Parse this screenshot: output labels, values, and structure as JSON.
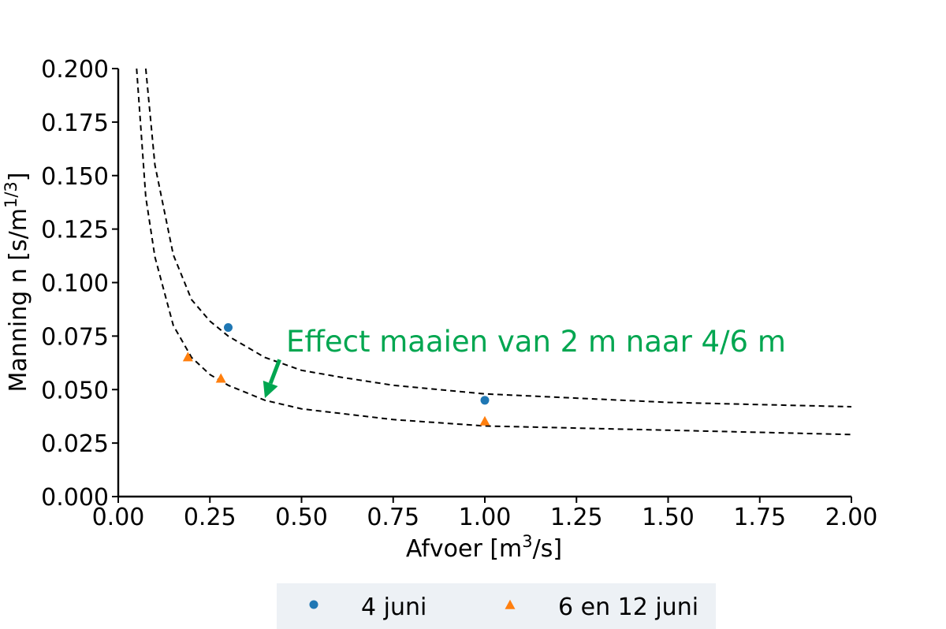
{
  "chart_data": {
    "type": "scatter",
    "title": "",
    "xlabel": {
      "base": "Afvoer [m",
      "sup": "3",
      "tail": "/s]"
    },
    "ylabel": {
      "base": "Manning n [s/m",
      "sup": "1/3",
      "tail": "]"
    },
    "xlim": [
      0.0,
      2.0
    ],
    "ylim": [
      0.0,
      0.2
    ],
    "x_ticks": [
      "0.00",
      "0.25",
      "0.50",
      "0.75",
      "1.00",
      "1.25",
      "1.50",
      "1.75",
      "2.00"
    ],
    "y_ticks": [
      "0.000",
      "0.025",
      "0.050",
      "0.075",
      "0.100",
      "0.125",
      "0.150",
      "0.175",
      "0.200"
    ],
    "grid": false,
    "legend_position": "bottom-center",
    "series": [
      {
        "name": "4 juni",
        "marker": "circle",
        "color": "#1f77b4",
        "points": [
          {
            "x": 0.3,
            "y": 0.079
          },
          {
            "x": 1.0,
            "y": 0.045
          }
        ]
      },
      {
        "name": "6 en 12 juni",
        "marker": "triangle",
        "color": "#ff7f0e",
        "points": [
          {
            "x": 0.19,
            "y": 0.065
          },
          {
            "x": 0.28,
            "y": 0.055
          },
          {
            "x": 1.0,
            "y": 0.035
          }
        ]
      }
    ],
    "fit_curves": [
      {
        "style": "dashed",
        "color": "#000000",
        "points": [
          {
            "x": 0.075,
            "y": 0.2
          },
          {
            "x": 0.1,
            "y": 0.155
          },
          {
            "x": 0.15,
            "y": 0.113
          },
          {
            "x": 0.2,
            "y": 0.092
          },
          {
            "x": 0.25,
            "y": 0.082
          },
          {
            "x": 0.3,
            "y": 0.075
          },
          {
            "x": 0.4,
            "y": 0.065
          },
          {
            "x": 0.5,
            "y": 0.059
          },
          {
            "x": 0.6,
            "y": 0.056
          },
          {
            "x": 0.75,
            "y": 0.052
          },
          {
            "x": 1.0,
            "y": 0.048
          },
          {
            "x": 1.25,
            "y": 0.046
          },
          {
            "x": 1.5,
            "y": 0.044
          },
          {
            "x": 1.75,
            "y": 0.043
          },
          {
            "x": 2.0,
            "y": 0.042
          }
        ]
      },
      {
        "style": "dashed",
        "color": "#000000",
        "points": [
          {
            "x": 0.05,
            "y": 0.2
          },
          {
            "x": 0.075,
            "y": 0.14
          },
          {
            "x": 0.1,
            "y": 0.112
          },
          {
            "x": 0.15,
            "y": 0.08
          },
          {
            "x": 0.2,
            "y": 0.065
          },
          {
            "x": 0.25,
            "y": 0.057
          },
          {
            "x": 0.3,
            "y": 0.052
          },
          {
            "x": 0.4,
            "y": 0.045
          },
          {
            "x": 0.5,
            "y": 0.041
          },
          {
            "x": 0.75,
            "y": 0.036
          },
          {
            "x": 1.0,
            "y": 0.033
          },
          {
            "x": 1.25,
            "y": 0.032
          },
          {
            "x": 1.5,
            "y": 0.031
          },
          {
            "x": 1.75,
            "y": 0.03
          },
          {
            "x": 2.0,
            "y": 0.029
          }
        ]
      }
    ],
    "annotation": {
      "text": "Effect maaien van 2 m naar 4/6 m",
      "color": "#00a650",
      "arrow_from": {
        "x": 0.44,
        "y": 0.064
      },
      "arrow_to": {
        "x": 0.4,
        "y": 0.046
      }
    }
  },
  "legend": {
    "background": "#edf1f5",
    "items": [
      {
        "label": "4 juni"
      },
      {
        "label": "6 en 12 juni"
      }
    ]
  }
}
